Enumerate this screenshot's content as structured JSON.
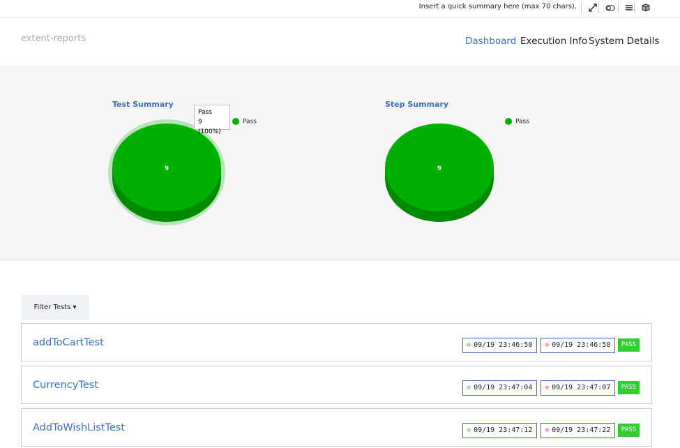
{
  "topbar": {
    "summary": "Insert a quick summary here (max 70 chars)."
  },
  "header": {
    "brand": "extent-reports",
    "nav": [
      "Dashboard",
      "Execution Info",
      "System Details"
    ]
  },
  "charts": [
    {
      "title": "Test Summary",
      "value": 9,
      "legend": "Pass",
      "tooltip": {
        "name": "Pass",
        "value": "9 (100%)"
      }
    },
    {
      "title": "Step Summary",
      "value": 9,
      "legend": "Pass"
    }
  ],
  "filter": "Filter Tests",
  "tests": [
    {
      "name": "addToCartTest",
      "start": "09/19 23:46:50",
      "end": "09/19 23:46:58",
      "status": "PASS"
    },
    {
      "name": "CurrencyTest",
      "start": "09/19 23:47:04",
      "end": "09/19 23:47:07",
      "status": "PASS"
    },
    {
      "name": "AddToWishListTest",
      "start": "09/19 23:47:12",
      "end": "09/19 23:47:22",
      "status": "PASS"
    }
  ]
}
